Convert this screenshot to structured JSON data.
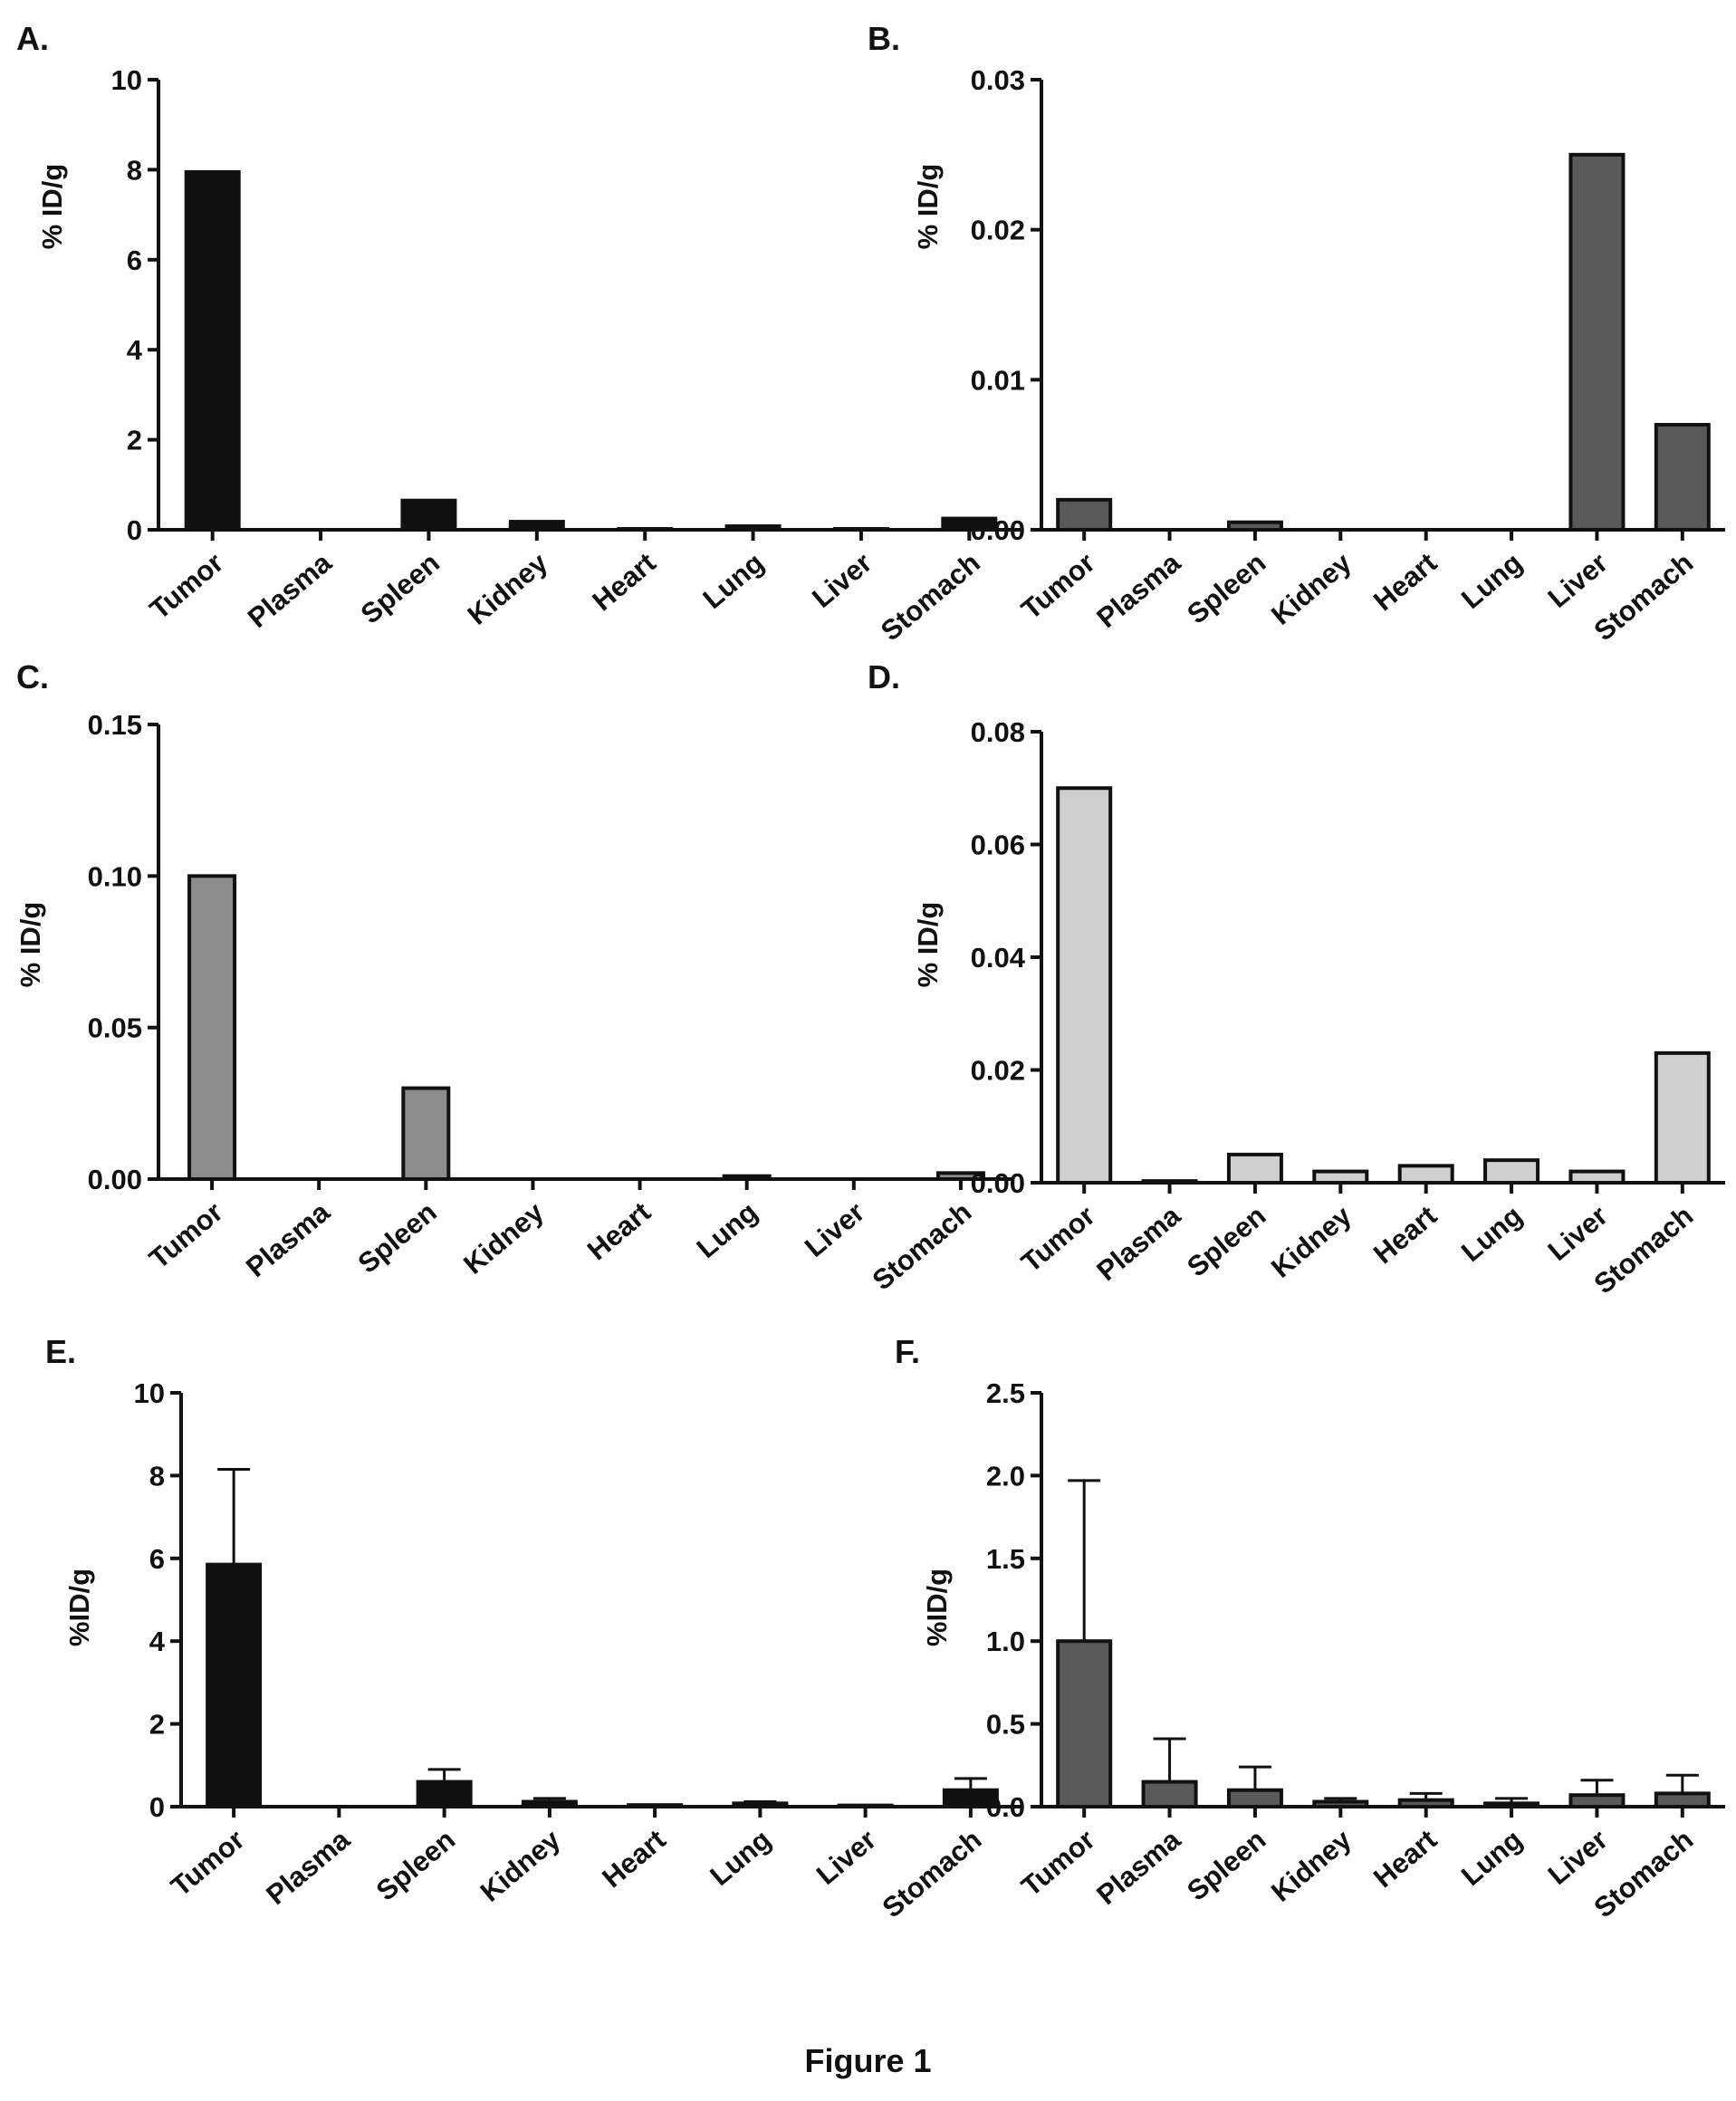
{
  "figure": {
    "caption": "Figure 1"
  },
  "chart_data": [
    {
      "panel": "A.",
      "type": "bar",
      "categories": [
        "Tumor",
        "Plasma",
        "Spleen",
        "Kidney",
        "Heart",
        "Lung",
        "Liver",
        "Stomach"
      ],
      "values": [
        7.95,
        0.0,
        0.65,
        0.18,
        0.02,
        0.08,
        0.02,
        0.25
      ],
      "ylabel": "% ID/g",
      "ylim": [
        0,
        10
      ],
      "yticks": [
        "0",
        "2",
        "4",
        "6",
        "8",
        "10"
      ],
      "yticks_num": [
        0,
        2,
        4,
        6,
        8,
        10
      ],
      "bar_color": "#111111"
    },
    {
      "panel": "B.",
      "type": "bar",
      "categories": [
        "Tumor",
        "Plasma",
        "Spleen",
        "Kidney",
        "Heart",
        "Lung",
        "Liver",
        "Stomach"
      ],
      "values": [
        0.002,
        0.0,
        0.0005,
        0.0,
        0.0,
        0.0,
        0.025,
        0.007
      ],
      "ylabel": "% ID/g",
      "ylim": [
        0,
        0.03
      ],
      "yticks": [
        "0.00",
        "0.01",
        "0.02",
        "0.03"
      ],
      "yticks_num": [
        0,
        0.01,
        0.02,
        0.03
      ],
      "bar_color": "#5a5a5a"
    },
    {
      "panel": "C.",
      "type": "bar",
      "categories": [
        "Tumor",
        "Plasma",
        "Spleen",
        "Kidney",
        "Heart",
        "Lung",
        "Liver",
        "Stomach"
      ],
      "values": [
        0.1,
        0.0,
        0.03,
        0.0,
        0.0,
        0.001,
        0.0,
        0.002
      ],
      "ylabel": "% ID/g",
      "ylim": [
        0,
        0.15
      ],
      "yticks": [
        "0.00",
        "0.05",
        "0.10",
        "0.15"
      ],
      "yticks_num": [
        0,
        0.05,
        0.1,
        0.15
      ],
      "bar_color": "#8c8c8c"
    },
    {
      "panel": "D.",
      "type": "bar",
      "categories": [
        "Tumor",
        "Plasma",
        "Spleen",
        "Kidney",
        "Heart",
        "Lung",
        "Liver",
        "Stomach"
      ],
      "values": [
        0.07,
        0.0003,
        0.005,
        0.002,
        0.003,
        0.004,
        0.002,
        0.023
      ],
      "ylabel": "% ID/g",
      "ylim": [
        0,
        0.08
      ],
      "yticks": [
        "0.00",
        "0.02",
        "0.04",
        "0.06",
        "0.08"
      ],
      "yticks_num": [
        0,
        0.02,
        0.04,
        0.06,
        0.08
      ],
      "bar_color": "#cfcfcf"
    },
    {
      "panel": "E.",
      "type": "bar",
      "categories": [
        "Tumor",
        "Plasma",
        "Spleen",
        "Kidney",
        "Heart",
        "Lung",
        "Liver",
        "Stomach"
      ],
      "values": [
        5.85,
        0.0,
        0.6,
        0.12,
        0.04,
        0.08,
        0.03,
        0.4
      ],
      "errors": [
        2.3,
        0.0,
        0.3,
        0.08,
        0.0,
        0.04,
        0.0,
        0.28
      ],
      "ylabel": "%ID/g",
      "ylim": [
        0,
        10
      ],
      "yticks": [
        "0",
        "2",
        "4",
        "6",
        "8",
        "10"
      ],
      "yticks_num": [
        0,
        2,
        4,
        6,
        8,
        10
      ],
      "bar_color": "#111111"
    },
    {
      "panel": "F.",
      "type": "bar",
      "categories": [
        "Tumor",
        "Plasma",
        "Spleen",
        "Kidney",
        "Heart",
        "Lung",
        "Liver",
        "Stomach"
      ],
      "values": [
        1.0,
        0.15,
        0.1,
        0.03,
        0.04,
        0.02,
        0.07,
        0.08
      ],
      "errors": [
        0.97,
        0.26,
        0.14,
        0.02,
        0.04,
        0.03,
        0.09,
        0.11
      ],
      "ylabel": "%ID/g",
      "ylim": [
        0,
        2.5
      ],
      "yticks": [
        "0.0",
        "0.5",
        "1.0",
        "1.5",
        "2.0",
        "2.5"
      ],
      "yticks_num": [
        0,
        0.5,
        1.0,
        1.5,
        2.0,
        2.5
      ],
      "bar_color": "#5a5a5a"
    }
  ]
}
